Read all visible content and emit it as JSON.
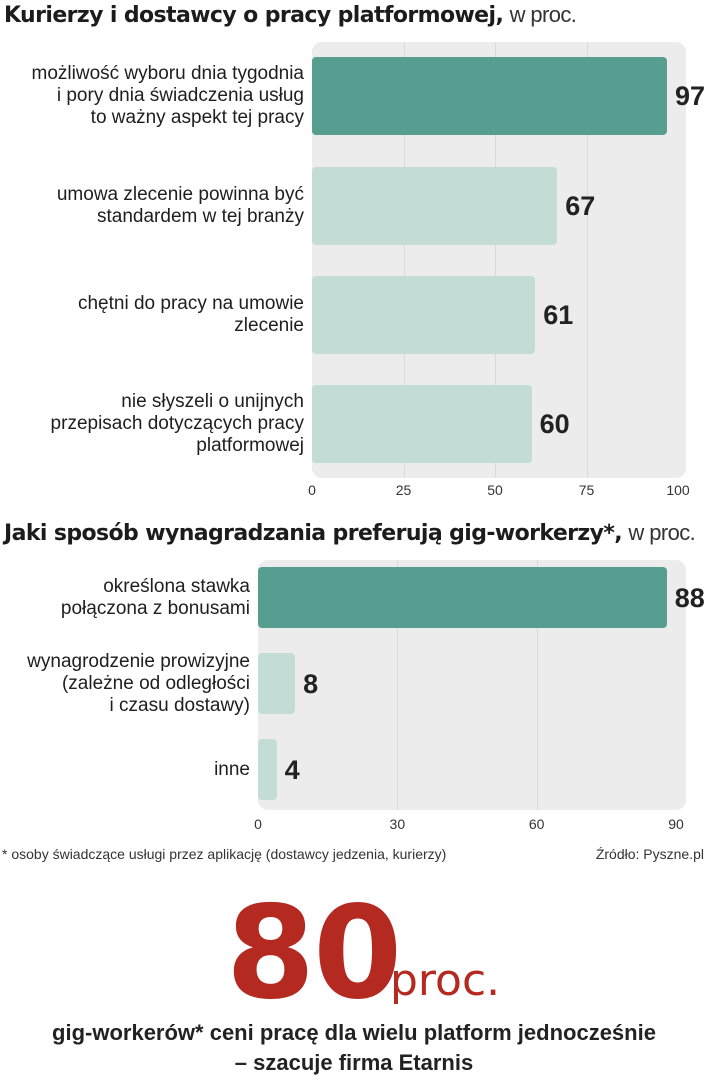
{
  "chart_data": [
    {
      "type": "bar",
      "orientation": "horizontal",
      "title": "Kurierzy i dostawcy o pracy platformowej,",
      "title_suffix": "w proc.",
      "categories": [
        [
          "możliwość wyboru dnia tygodnia",
          "i pory dnia świadczenia usług",
          "to ważny aspekt tej pracy"
        ],
        [
          "umowa zlecenie powinna być",
          "standardem w tej branży"
        ],
        [
          "chętni do pracy na umowie",
          "zlecenie"
        ],
        [
          "nie słyszeli o unijnych",
          "przepisach dotyczących pracy",
          "platformowej"
        ]
      ],
      "values": [
        97,
        67,
        61,
        60
      ],
      "value_labels": [
        "97",
        "67",
        "61",
        "60"
      ],
      "xlim": [
        0,
        100
      ],
      "ticks": [
        "0",
        "25",
        "50",
        "75",
        "100"
      ],
      "tick_values": [
        0,
        25,
        50,
        75,
        100
      ],
      "highlight_index": 0
    },
    {
      "type": "bar",
      "orientation": "horizontal",
      "title": "Jaki sposób wynagradzania preferują gig-workerzy*,",
      "title_suffix": "w proc.",
      "categories": [
        [
          "określona stawka",
          "połączona z bonusami"
        ],
        [
          "wynagrodzenie prowizyjne",
          "(zależne od odległości",
          "i czasu dostawy)"
        ],
        [
          "inne"
        ]
      ],
      "values": [
        88,
        8,
        4
      ],
      "value_labels": [
        "88",
        "8",
        "4"
      ],
      "xlim": [
        0,
        90
      ],
      "ticks": [
        "0",
        "30",
        "60",
        "90"
      ],
      "tick_values": [
        0,
        30,
        60,
        90
      ],
      "highlight_index": 0
    }
  ],
  "footnote": "* osoby świadczące usługi przez aplikację (dostawcy jedzenia, kurierzy)",
  "source": "Źródło: Pyszne.pl",
  "highlight": {
    "number": "80",
    "unit": "proc.",
    "text_line1": "gig-workerów* ceni pracę dla wielu platform jednocześnie",
    "text_line2": "– szacuje firma Etarnis"
  },
  "colors": {
    "bar_highlight": "#559e90",
    "bar_regular": "#c4dcd6",
    "panel": "#ececec",
    "accent_red": "#b42a21"
  }
}
